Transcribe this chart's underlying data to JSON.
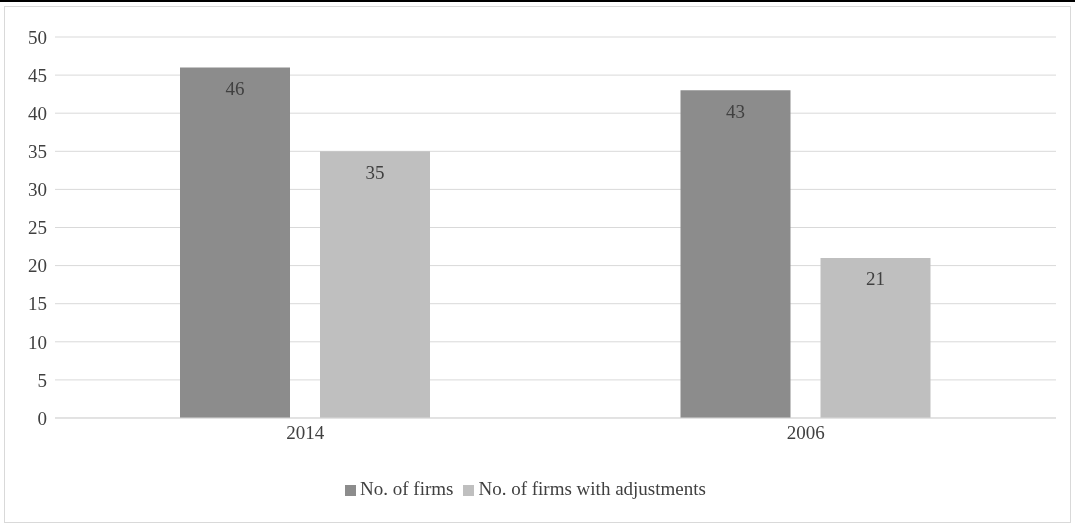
{
  "chart_data": {
    "type": "bar",
    "categories": [
      "2014",
      "2006"
    ],
    "series": [
      {
        "name": "No. of firms",
        "color": "#8c8c8c",
        "values": [
          46,
          43
        ]
      },
      {
        "name": "No. of firms with adjustments",
        "color": "#bfbfbf",
        "values": [
          35,
          21
        ]
      }
    ],
    "ylim": [
      0,
      50
    ],
    "yticks": [
      0,
      5,
      10,
      15,
      20,
      25,
      30,
      35,
      40,
      45,
      50
    ],
    "grid": "y",
    "legend": "bottom",
    "data_labels": true
  }
}
